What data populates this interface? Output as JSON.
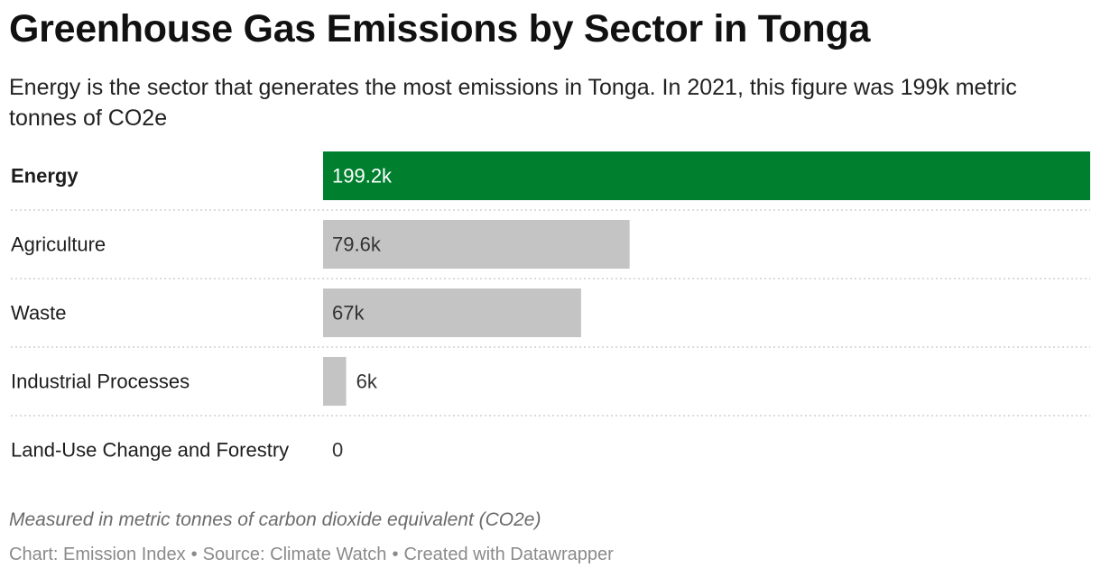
{
  "title": "Greenhouse Gas Emissions by Sector in Tonga",
  "subtitle": "Energy is the sector that generates the most emissions in Tonga. In 2021, this figure was 199k metric tonnes of CO2e",
  "notes": "Measured in metric tonnes of carbon dioxide equivalent (CO2e)",
  "footer": {
    "chart_credit": "Chart: Emission Index",
    "source": "Source: Climate Watch",
    "created_with": "Created with Datawrapper",
    "separator": "•"
  },
  "colors": {
    "highlight": "#00802f",
    "default_bar": "#c4c4c4",
    "highlight_label": "#ffffff",
    "default_label": "#333333",
    "divider": "#cfcfcf"
  },
  "chart_data": {
    "type": "bar",
    "orientation": "horizontal",
    "categories": [
      "Energy",
      "Agriculture",
      "Waste",
      "Industrial Processes",
      "Land-Use Change and Forestry"
    ],
    "values": [
      199200,
      79600,
      67000,
      6000,
      0
    ],
    "value_labels": [
      "199.2k",
      "79.6k",
      "67k",
      "6k",
      "0"
    ],
    "highlighted_category": "Energy",
    "xlim": [
      0,
      199200
    ],
    "grid": false,
    "legend": "none"
  }
}
